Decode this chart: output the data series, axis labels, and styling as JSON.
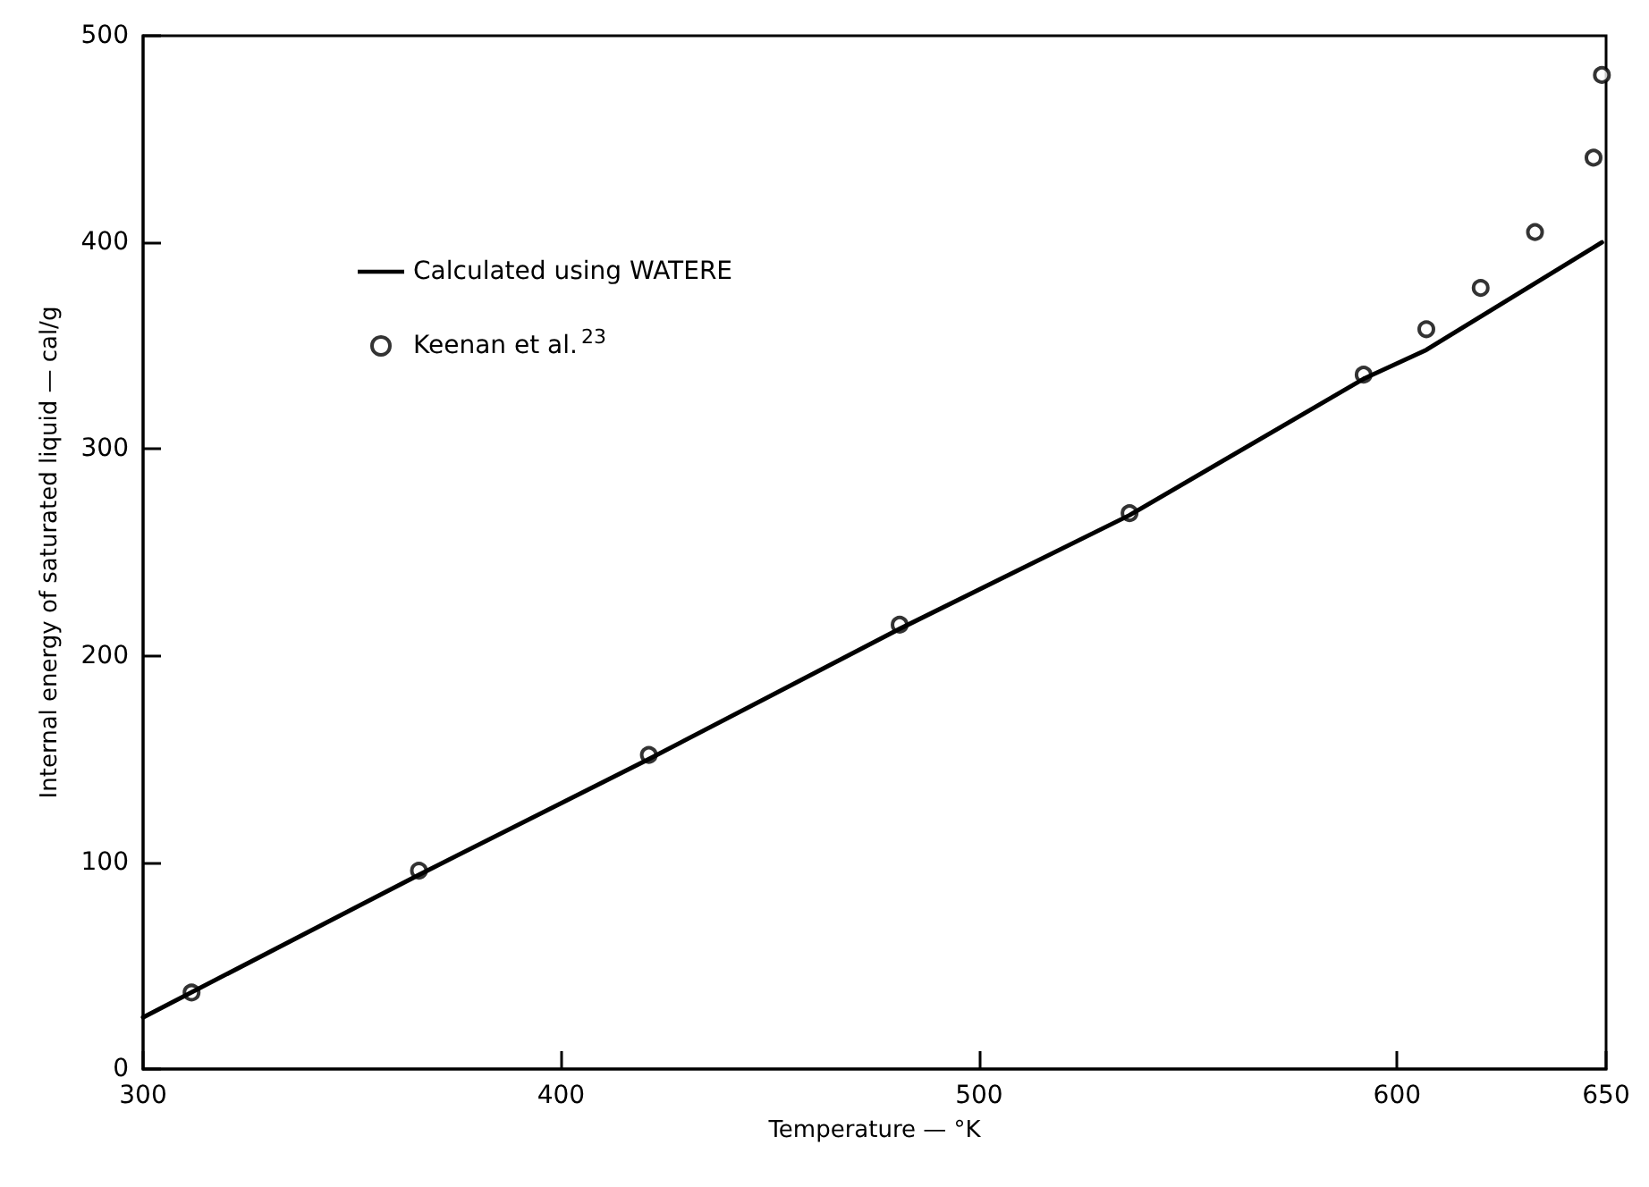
{
  "chart_data": {
    "type": "line",
    "xlabel": "Temperature — °K",
    "ylabel": "Internal energy of saturated liquid — cal/g",
    "xlim": [
      300,
      650
    ],
    "xticks": [
      300,
      400,
      500,
      600,
      650
    ],
    "ylim": [
      0,
      500
    ],
    "yticks": [
      0,
      100,
      200,
      300,
      400,
      500
    ],
    "grid": false,
    "legend": "top left",
    "line_style": "solid",
    "series": [
      {
        "name": "Calculated using WATERE",
        "marker": "none",
        "color": "#000000",
        "x": [
          300,
          366,
          421,
          481,
          536,
          592,
          607,
          649
        ],
        "values": [
          25,
          94,
          150,
          213,
          268,
          334,
          348,
          400
        ]
      },
      {
        "name": "Keenan et al.$^{23}$",
        "type": "scatter",
        "marker": "circle",
        "color": "#000000",
        "x": [
          311.6,
          366,
          421,
          481,
          536,
          592,
          607,
          620,
          633,
          647,
          649
        ],
        "values": [
          37,
          96,
          152,
          215,
          269,
          336,
          358,
          378,
          405,
          441,
          481
        ]
      }
    ]
  }
}
